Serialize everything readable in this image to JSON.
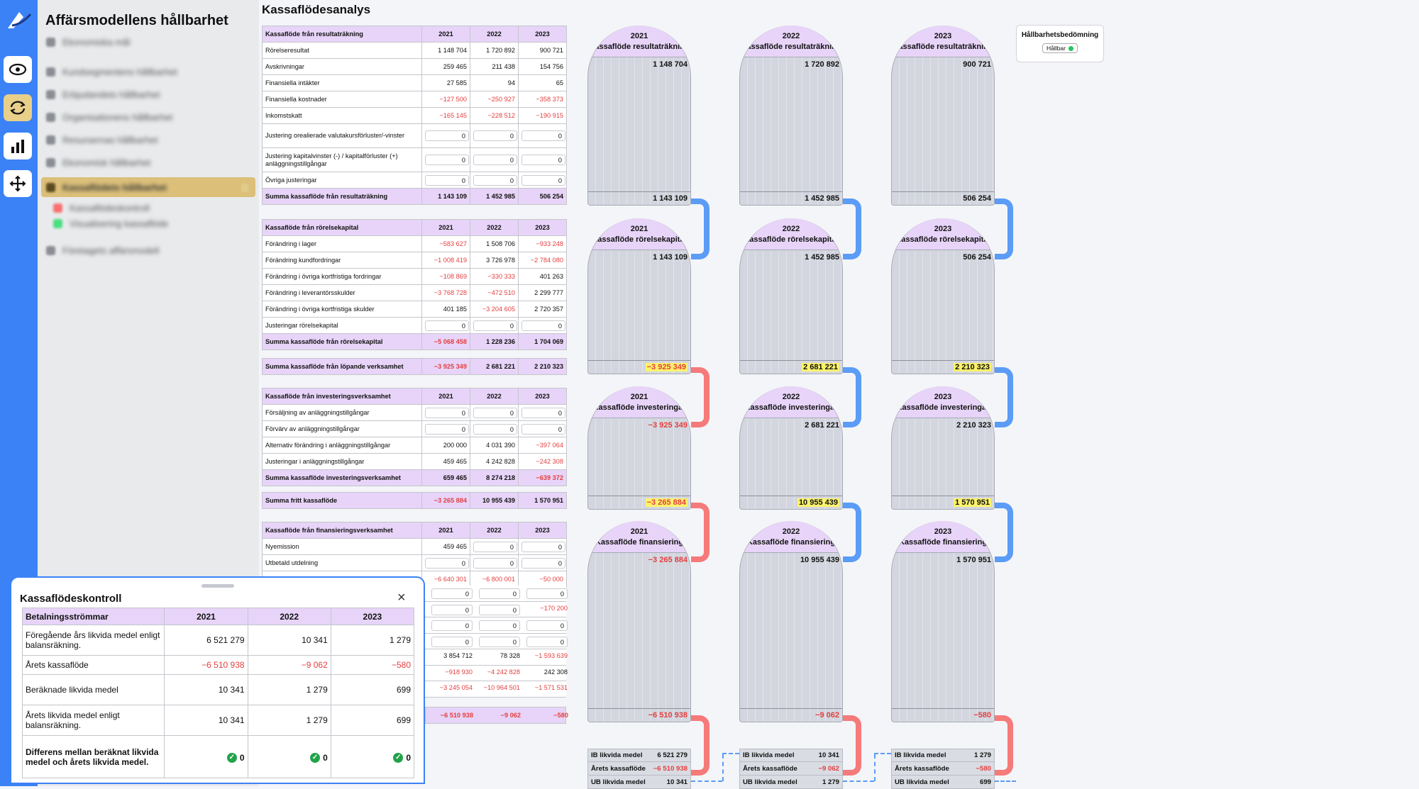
{
  "app": {
    "title": "Affärsmodellens hållbarhet"
  },
  "iconbar": [
    {
      "icon": "eye-icon"
    },
    {
      "icon": "refresh-icon"
    },
    {
      "icon": "bar-chart-icon"
    },
    {
      "icon": "move-icon"
    }
  ],
  "sidebar": {
    "items": [
      {
        "label": "Ekonomiska mål"
      },
      {
        "label": "Kundsegmentens hållbarhet"
      },
      {
        "label": "Erbjudandets hållbarhet"
      },
      {
        "label": "Organisationens hållbarhet"
      },
      {
        "label": "Resursernas hållbarhet"
      },
      {
        "label": "Ekonomisk hållbarhet"
      },
      {
        "label": "Kassaflödets hållbarhet"
      },
      {
        "label": "Kassaflödeskontroll"
      },
      {
        "label": "Visualisering kassaflöde"
      },
      {
        "label": "Företagets affärsmodell"
      }
    ]
  },
  "page": {
    "title": "Kassaflödesanalys"
  },
  "years": [
    "2021",
    "2022",
    "2023"
  ],
  "result": {
    "header": "Kassaflöde från resultaträkning",
    "rows": [
      {
        "label": "Rörelseresultat",
        "v": [
          "1 148 704",
          "1 720 892",
          "900 721"
        ]
      },
      {
        "label": "Avskrivningar",
        "v": [
          "259 465",
          "211 438",
          "154 756"
        ]
      },
      {
        "label": "Finansiella intäkter",
        "v": [
          "27 585",
          "94",
          "65"
        ]
      },
      {
        "label": "Finansiella kostnader",
        "v": [
          "−127 500",
          "−250 927",
          "−358 373"
        ]
      },
      {
        "label": "Inkomstskatt",
        "v": [
          "−165 145",
          "−228 512",
          "−190 915"
        ]
      },
      {
        "label": "Justering orealierade valutakursförluster/-vinster",
        "v": [
          "0",
          "0",
          "0"
        ]
      },
      {
        "label": "Justering kapitalvinster (-) / kapitalförluster (+) anläggningstillgångar",
        "v": [
          "0",
          "0",
          "0"
        ]
      },
      {
        "label": "Övriga justeringar",
        "v": [
          "0",
          "0",
          "0"
        ]
      }
    ],
    "sum": {
      "label": "Summa kassaflöde från resultaträkning",
      "v": [
        "1 143 109",
        "1 452 985",
        "506 254"
      ]
    }
  },
  "working": {
    "header": "Kassaflöde från rörelsekapital",
    "rows": [
      {
        "label": "Förändring i lager",
        "v": [
          "−583 627",
          "1 508 706",
          "−933 248"
        ]
      },
      {
        "label": "Förändring kundfordringar",
        "v": [
          "−1 008 419",
          "3 726 978",
          "−2 784 080"
        ]
      },
      {
        "label": "Förändring i övriga kortfristiga fordringar",
        "v": [
          "−108 869",
          "−330 333",
          "401 263"
        ]
      },
      {
        "label": "Förändring i leverantörsskulder",
        "v": [
          "−3 768 728",
          "−472 510",
          "2 299 777"
        ]
      },
      {
        "label": "Förändring i övriga kortfristiga skulder",
        "v": [
          "401 185",
          "−3 204 605",
          "2 720 357"
        ]
      },
      {
        "label": "Justeringar rörelsekapital",
        "v": [
          "0",
          "0",
          "0"
        ]
      }
    ],
    "sum": {
      "label": "Summa kassaflöde från rörelsekapital",
      "v": [
        "−5 068 458",
        "1 228 236",
        "1 704 069"
      ]
    }
  },
  "operating": {
    "label": "Summa kassaflöde från löpande verksamhet",
    "v": [
      "−3 925 349",
      "2 681 221",
      "2 210 323"
    ]
  },
  "investing": {
    "header": "Kassaflöde från investeringsverksamhet",
    "rows": [
      {
        "label": "Försäljning av anläggningstillgångar",
        "v": [
          "0",
          "0",
          "0"
        ]
      },
      {
        "label": "Förvärv av anläggningstillgångar",
        "v": [
          "0",
          "0",
          "0"
        ]
      },
      {
        "label": "Alternativ förändring i anläggningstillgångar",
        "v": [
          "200 000",
          "4 031 390",
          "−397 064"
        ]
      },
      {
        "label": "Justeringar i anläggningstillgångar",
        "v": [
          "459 465",
          "4 242 828",
          "−242 308"
        ]
      }
    ],
    "sum": {
      "label": "Summa kassaflöde investeringsverksamhet",
      "v": [
        "659 465",
        "8 274 218",
        "−639 372"
      ]
    }
  },
  "free": {
    "label": "Summa fritt kassaflöde",
    "v": [
      "−3 265 884",
      "10 955 439",
      "1 570 951"
    ]
  },
  "financing": {
    "header": "Kassaflöde från finansieringsverksamhet",
    "rows": [
      {
        "label": "Nyemission",
        "v": [
          "459 465",
          "0",
          "0"
        ]
      },
      {
        "label": "Utbetald utdelning",
        "v": [
          "0",
          "0",
          "0"
        ]
      },
      {
        "label": "Alternativ förändring i skulder",
        "v": [
          "−6 640 301",
          "−6 800 001",
          "−50 000"
        ]
      }
    ],
    "hidden_rows": [
      [
        "0",
        "0",
        "0"
      ],
      [
        "0",
        "0",
        "−170 200"
      ],
      [
        "0",
        "0",
        "0"
      ],
      [
        "0",
        "0",
        "0"
      ],
      [
        "3 854 712",
        "78 328",
        "−1 593 639"
      ],
      [
        "−918 930",
        "−4 242 828",
        "242 308"
      ],
      [
        "−3 245 054",
        "−10 964 501",
        "−1 571 531"
      ]
    ],
    "year_total": [
      "−6 510 938",
      "−9 062",
      "−580"
    ]
  },
  "viz": {
    "columns": [
      {
        "year": "2021",
        "result": {
          "title": "Kassaflöde resultaträkning",
          "in": "1 148 704",
          "out": "1 143 109"
        },
        "working": {
          "title": "Kassaflöde rörelsekapital",
          "in": "1 143 109",
          "out": "−3 925 349"
        },
        "investing": {
          "title": "Kassaflöde investeringar",
          "in": "−3 925 349",
          "out": "−3 265 884"
        },
        "financing": {
          "title": "Kassaflöde finansiering",
          "in": "−3 265 884",
          "out": "−6 510 938"
        },
        "summary": {
          "ib_label": "IB likvida medel",
          "ib": "6 521 279",
          "cf_label": "Årets kassaflöde",
          "cf": "−6 510 938",
          "ub_label": "UB likvida medel",
          "ub": "10 341"
        }
      },
      {
        "year": "2022",
        "result": {
          "title": "Kassaflöde resultaträkning",
          "in": "1 720 892",
          "out": "1 452 985"
        },
        "working": {
          "title": "Kassaflöde rörelsekapital",
          "in": "1 452 985",
          "out": "2 681 221"
        },
        "investing": {
          "title": "Kassaflöde investeringar",
          "in": "2 681 221",
          "out": "10 955 439"
        },
        "financing": {
          "title": "Kassaflöde finansiering",
          "in": "10 955 439",
          "out": "−9 062"
        },
        "summary": {
          "ib_label": "IB likvida medel",
          "ib": "10 341",
          "cf_label": "Årets kassaflöde",
          "cf": "−9 062",
          "ub_label": "UB likvida medel",
          "ub": "1 279"
        }
      },
      {
        "year": "2023",
        "result": {
          "title": "Kassaflöde resultaträkning",
          "in": "900 721",
          "out": "506 254"
        },
        "working": {
          "title": "Kassaflöde rörelsekapital",
          "in": "506 254",
          "out": "2 210 323"
        },
        "investing": {
          "title": "Kassaflöde investeringar",
          "in": "2 210 323",
          "out": "1 570 951"
        },
        "financing": {
          "title": "Kassaflöde finansiering",
          "in": "1 570 951",
          "out": "−580"
        },
        "summary": {
          "ib_label": "IB likvida medel",
          "ib": "1 279",
          "cf_label": "Årets kassaflöde",
          "cf": "−580",
          "ub_label": "UB likvida medel",
          "ub": "699"
        }
      }
    ]
  },
  "sustainability": {
    "title": "Hållbarhetsbedömning",
    "badge": "Hållbar",
    "badge_color": "#22c55e"
  },
  "panel": {
    "title": "Kassaflödeskontroll",
    "header": "Betalningsströmmar",
    "rows": [
      {
        "label": "Föregående års likvida medel enligt balansräkning.",
        "v": [
          "6 521 279",
          "10 341",
          "1 279"
        ]
      },
      {
        "label": "Årets kassaflöde",
        "v": [
          "−6 510 938",
          "−9 062",
          "−580"
        ]
      },
      {
        "label": "Beräknade likvida medel",
        "v": [
          "10 341",
          "1 279",
          "699"
        ]
      },
      {
        "label": "Årets likvida medel enligt balansräkning.",
        "v": [
          "10 341",
          "1 279",
          "699"
        ]
      }
    ],
    "diff": {
      "label": "Differens mellan beräknat likvida medel och årets likvida medel.",
      "v": [
        "0",
        "0",
        "0"
      ]
    }
  },
  "colors": {
    "accent": "#3b82f6",
    "header_bg": "#e7d4f8",
    "negative": "#e53e3e",
    "highlight": "#fdf36b",
    "connector_blue": "#5b9cf6",
    "connector_red": "#f57a7a"
  }
}
